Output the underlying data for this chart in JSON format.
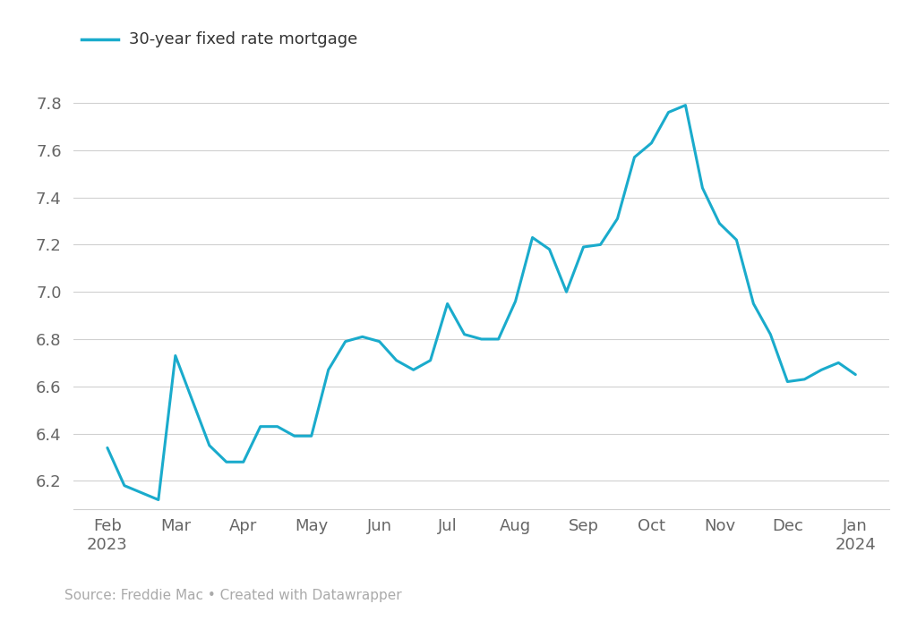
{
  "title": "30-year fixed rate mortgage",
  "line_color": "#1AABCC",
  "background_color": "#ffffff",
  "source_text": "Source: Freddie Mac • Created with Datawrapper",
  "ylim": [
    6.08,
    7.92
  ],
  "yticks": [
    6.2,
    6.4,
    6.6,
    6.8,
    7.0,
    7.2,
    7.4,
    7.6,
    7.8
  ],
  "x_labels": [
    "Feb\n2023",
    "Mar",
    "Apr",
    "May",
    "Jun",
    "Jul",
    "Aug",
    "Sep",
    "Oct",
    "Nov",
    "Dec",
    "Jan\n2024"
  ],
  "data_points": [
    6.34,
    6.18,
    6.15,
    6.12,
    6.73,
    6.54,
    6.35,
    6.28,
    6.28,
    6.43,
    6.43,
    6.39,
    6.39,
    6.67,
    6.79,
    6.81,
    6.79,
    6.71,
    6.67,
    6.71,
    6.95,
    6.82,
    6.8,
    6.8,
    6.96,
    7.23,
    7.18,
    7.0,
    7.19,
    7.2,
    7.31,
    7.57,
    7.63,
    7.76,
    7.79,
    7.44,
    7.29,
    7.22,
    6.95,
    6.82,
    6.62,
    6.63,
    6.67,
    6.7,
    6.65
  ],
  "n_months": 12,
  "line_width": 2.2,
  "grid_color": "#d0d0d0",
  "tick_color": "#999999",
  "label_color": "#666666",
  "legend_line_color": "#1AABCC"
}
